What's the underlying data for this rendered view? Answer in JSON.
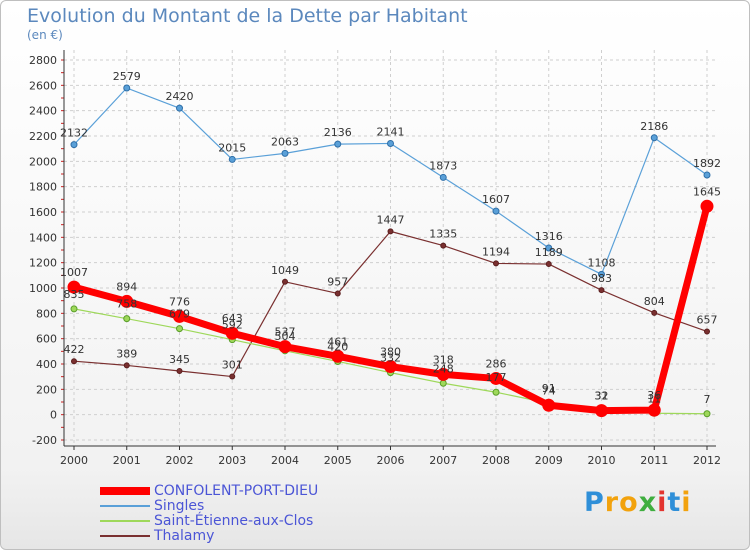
{
  "title": "Evolution du Montant de la Dette par Habitant",
  "subtitle": "(en €)",
  "logo": {
    "text": "Proxiti",
    "letters": [
      "P",
      "r",
      "o",
      "x",
      "i",
      "t",
      "i"
    ],
    "colors": [
      "#2f8fd8",
      "#f2a20d",
      "#f2a20d",
      "#3fae3f",
      "#e3342f",
      "#2f8fd8",
      "#f2a20d"
    ]
  },
  "chart_data": {
    "type": "line",
    "title": "Evolution du Montant de la Dette par Habitant",
    "subtitle": "(en €)",
    "x": [
      "2000",
      "2001",
      "2002",
      "2003",
      "2004",
      "2005",
      "2006",
      "2007",
      "2008",
      "2009",
      "2010",
      "2011",
      "2012"
    ],
    "ylim": [
      -200,
      2800
    ],
    "yticks": [
      -200,
      0,
      200,
      400,
      600,
      800,
      1000,
      1200,
      1400,
      1600,
      1800,
      2000,
      2200,
      2400,
      2600,
      2800
    ],
    "ytick_labels": [
      "-200",
      "0",
      "200",
      "400",
      "600",
      "800",
      "1000",
      "1200",
      "1400",
      "1600",
      "1800",
      "2000",
      "2200",
      "2400",
      "2600",
      "2800"
    ],
    "grid": true,
    "legend_position": "bottom-left",
    "series": [
      {
        "name": "CONFOLENT-PORT-DIEU",
        "color": "#ff0000",
        "values": [
          1007,
          894,
          776,
          643,
          537,
          461,
          380,
          318,
          286,
          74,
          32,
          36,
          1645
        ],
        "labels": [
          "1007",
          "894",
          "776",
          "643",
          "537",
          "461",
          "380",
          "318",
          "286",
          "74",
          "32",
          "36",
          "1645"
        ]
      },
      {
        "name": "Singles",
        "color": "#5aa0d8",
        "values": [
          2132,
          2579,
          2420,
          2015,
          2063,
          2136,
          2141,
          1873,
          1607,
          1316,
          1108,
          2186,
          1892
        ],
        "labels": [
          "2132",
          "2579",
          "2420",
          "2015",
          "2063",
          "2136",
          "2141",
          "1873",
          "1607",
          "1316",
          "1108",
          "2186",
          "1892"
        ]
      },
      {
        "name": "Saint-Étienne-aux-Clos",
        "color": "#9ed85a",
        "values": [
          835,
          758,
          679,
          592,
          504,
          420,
          332,
          248,
          177,
          91,
          31,
          11,
          7
        ],
        "labels": [
          "835",
          "758",
          "679",
          "592",
          "504",
          "420",
          "332",
          "248",
          "177",
          "91",
          "31",
          "11",
          "7"
        ]
      },
      {
        "name": "Thalamy",
        "color": "#7a3030",
        "values": [
          422,
          389,
          345,
          301,
          1049,
          957,
          1447,
          1335,
          1194,
          1189,
          983,
          804,
          657
        ],
        "labels": [
          "422",
          "389",
          "345",
          "301",
          "1049",
          "957",
          "1447",
          "1335",
          "1194",
          "1189",
          "983",
          "804",
          "657"
        ]
      }
    ]
  }
}
